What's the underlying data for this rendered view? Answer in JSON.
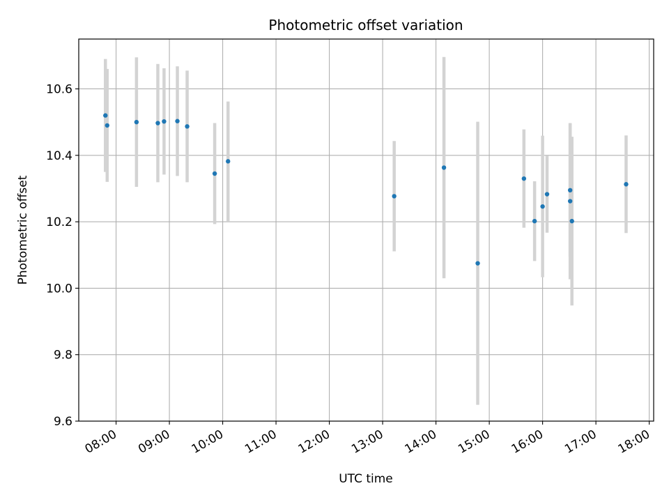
{
  "chart_data": {
    "type": "scatter",
    "title": "Photometric offset variation",
    "xlabel": "UTC time",
    "ylabel": "Photometric offset",
    "xlim": [
      "07:18",
      "18:05"
    ],
    "ylim": [
      9.6,
      10.75
    ],
    "xticks": [
      "08:00",
      "09:00",
      "10:00",
      "11:00",
      "12:00",
      "13:00",
      "14:00",
      "15:00",
      "16:00",
      "17:00",
      "18:00"
    ],
    "yticks": [
      9.6,
      9.8,
      10.0,
      10.2,
      10.4,
      10.6
    ],
    "grid": true,
    "colors": {
      "point": "#1f77b4",
      "errorbar": "#d3d3d3",
      "grid": "#b0b0b0"
    },
    "points": [
      {
        "time": "07:48",
        "y": 10.52,
        "err": 0.17
      },
      {
        "time": "07:50",
        "y": 10.49,
        "err": 0.17
      },
      {
        "time": "08:23",
        "y": 10.5,
        "err": 0.195
      },
      {
        "time": "08:47",
        "y": 10.497,
        "err": 0.178
      },
      {
        "time": "08:54",
        "y": 10.502,
        "err": 0.16
      },
      {
        "time": "09:09",
        "y": 10.503,
        "err": 0.165
      },
      {
        "time": "09:20",
        "y": 10.487,
        "err": 0.168
      },
      {
        "time": "09:51",
        "y": 10.345,
        "err": 0.152
      },
      {
        "time": "10:06",
        "y": 10.382,
        "err": 0.18
      },
      {
        "time": "13:13",
        "y": 10.277,
        "err": 0.166
      },
      {
        "time": "14:09",
        "y": 10.363,
        "err": 0.333
      },
      {
        "time": "14:47",
        "y": 10.075,
        "err": 0.426
      },
      {
        "time": "15:39",
        "y": 10.33,
        "err": 0.148
      },
      {
        "time": "15:51",
        "y": 10.202,
        "err": 0.12
      },
      {
        "time": "16:00",
        "y": 10.246,
        "err": 0.213
      },
      {
        "time": "16:05",
        "y": 10.283,
        "err": 0.116
      },
      {
        "time": "16:31",
        "y": 10.295,
        "err": 0.2
      },
      {
        "time": "16:31",
        "y": 10.262,
        "err": 0.235
      },
      {
        "time": "16:33",
        "y": 10.202,
        "err": 0.254
      },
      {
        "time": "17:34",
        "y": 10.313,
        "err": 0.147
      }
    ]
  }
}
